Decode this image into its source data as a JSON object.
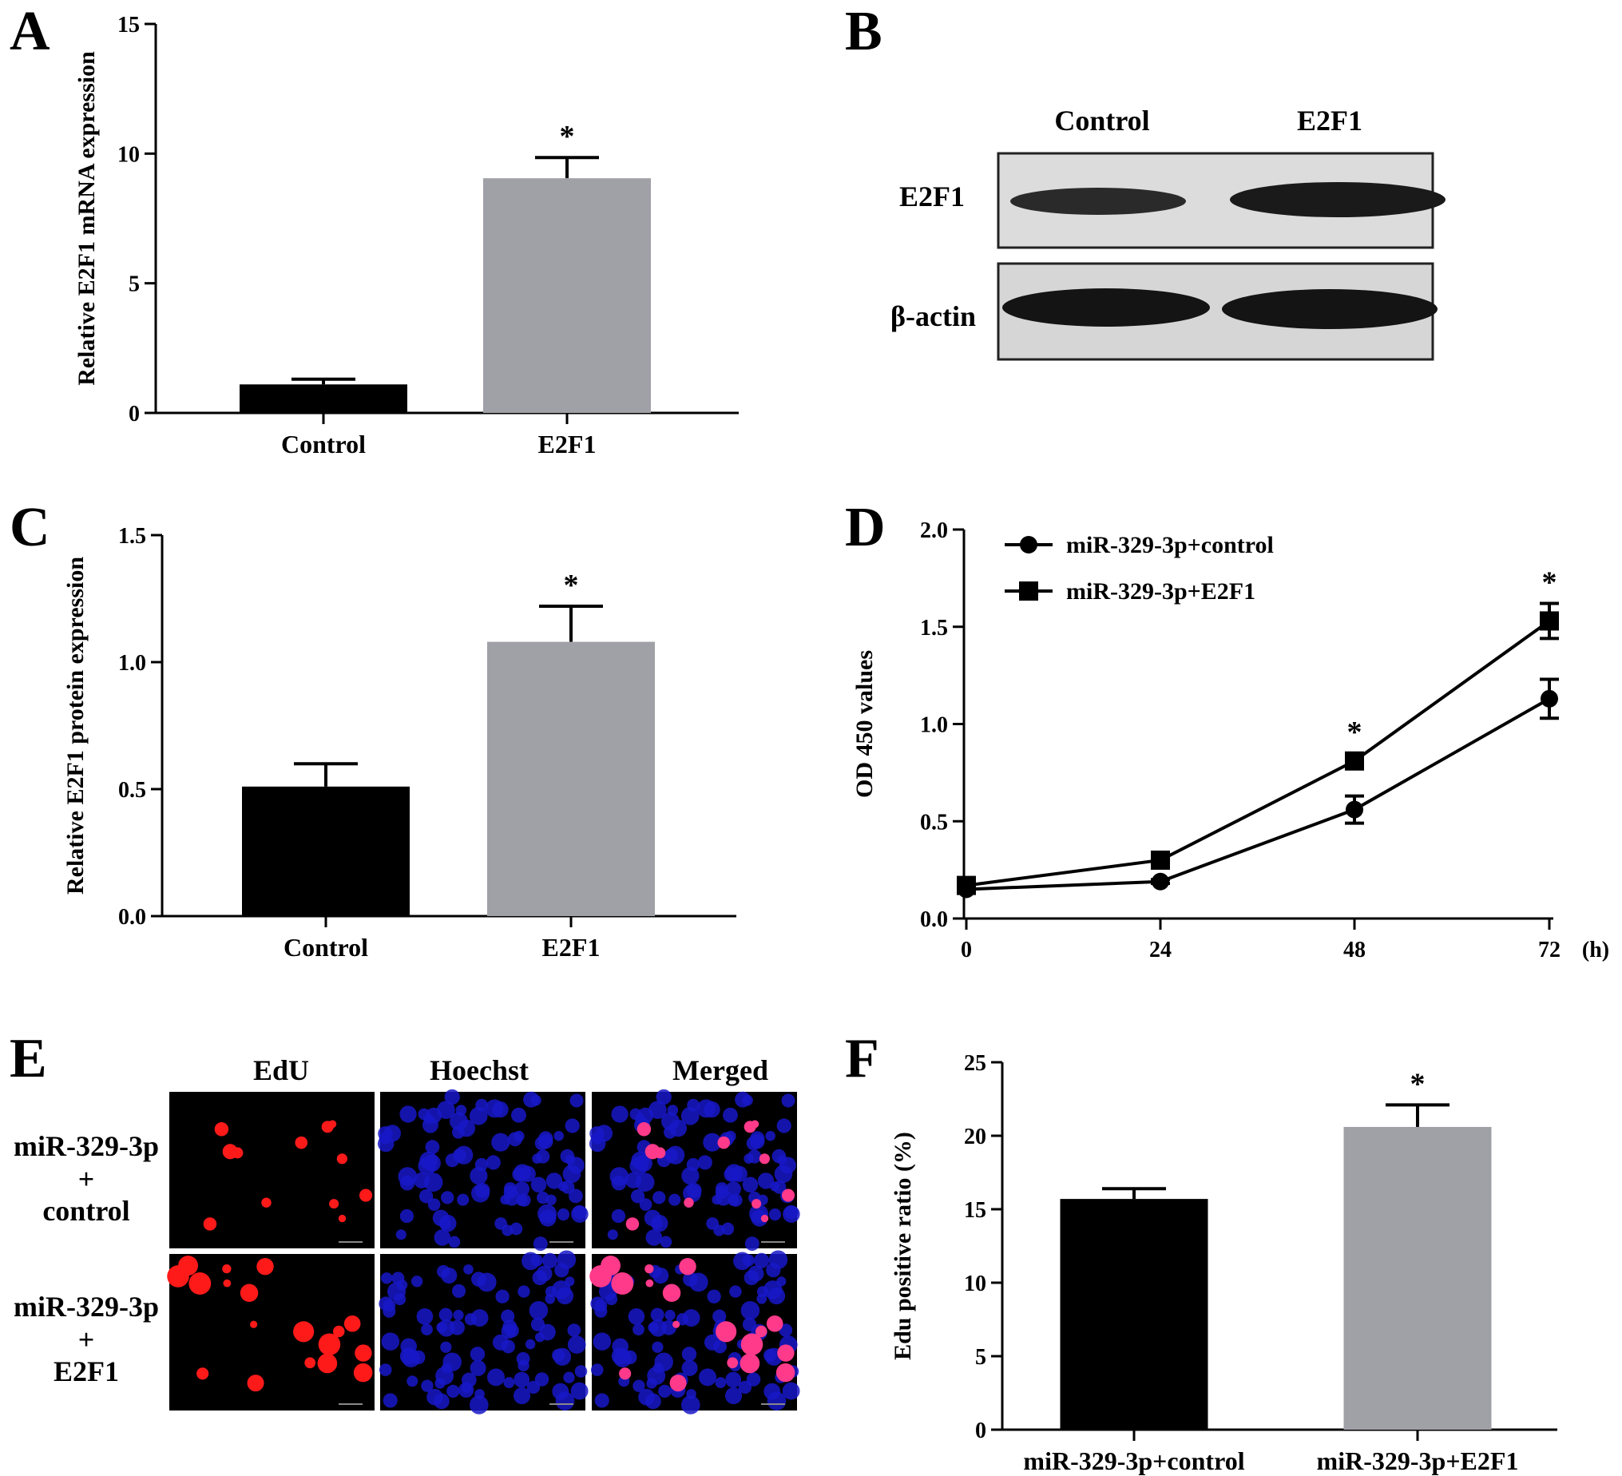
{
  "panels": {
    "A": {
      "letter": "A"
    },
    "B": {
      "letter": "B",
      "lanes": [
        "Control",
        "E2F1"
      ],
      "rows": [
        "E2F1",
        "β-actin"
      ]
    },
    "C": {
      "letter": "C"
    },
    "D": {
      "letter": "D",
      "x_unit": "(h)"
    },
    "E": {
      "letter": "E",
      "columns": [
        "EdU",
        "Hoechst",
        "Merged"
      ],
      "row1": [
        "miR-329-3p",
        "+",
        "control"
      ],
      "row2": [
        "miR-329-3p",
        "+",
        "E2F1"
      ]
    },
    "F": {
      "letter": "F"
    }
  },
  "colors": {
    "control": "#000000",
    "treated": "#a0a0a7",
    "edu": "#ff1a1a",
    "hoechst": "#1818c8"
  },
  "chart_data": [
    {
      "id": "A",
      "type": "bar",
      "ylabel": "Relative E2F1 mRNA expression",
      "ylim": [
        0,
        15
      ],
      "yticks": [
        "0",
        "5",
        "10",
        "15"
      ],
      "categories": [
        "Control",
        "E2F1"
      ],
      "values": [
        1.1,
        9.05
      ],
      "errors": [
        0.2,
        0.8
      ],
      "significance": [
        "",
        "*"
      ]
    },
    {
      "id": "C",
      "type": "bar",
      "ylabel": "Relative E2F1 protein expression",
      "ylim": [
        0,
        1.5
      ],
      "yticks": [
        "0.0",
        "0.5",
        "1.0",
        "1.5"
      ],
      "categories": [
        "Control",
        "E2F1"
      ],
      "values": [
        0.51,
        1.08
      ],
      "errors": [
        0.09,
        0.14
      ],
      "significance": [
        "",
        "*"
      ]
    },
    {
      "id": "D",
      "type": "line",
      "ylabel": "OD 450 values",
      "ylim": [
        0,
        2.0
      ],
      "yticks": [
        "0.0",
        "0.5",
        "1.0",
        "1.5",
        "2.0"
      ],
      "x": [
        0,
        24,
        48,
        72
      ],
      "xticks": [
        "0",
        "24",
        "48",
        "72"
      ],
      "series": [
        {
          "name": "miR-329-3p+control",
          "marker": "circle",
          "values": [
            0.15,
            0.19,
            0.56,
            1.13
          ],
          "errors": [
            0.01,
            0.01,
            0.07,
            0.1
          ]
        },
        {
          "name": "miR-329-3p+E2F1",
          "marker": "square",
          "values": [
            0.17,
            0.3,
            0.81,
            1.53
          ],
          "errors": [
            0.01,
            0.01,
            0.04,
            0.09
          ]
        }
      ],
      "significance": [
        "",
        "",
        "*",
        "*"
      ],
      "legend": "top-left"
    },
    {
      "id": "F",
      "type": "bar",
      "ylabel": "Edu positive ratio (%)",
      "ylim": [
        0,
        25
      ],
      "yticks": [
        "0",
        "5",
        "10",
        "15",
        "20",
        "25"
      ],
      "categories": [
        "miR-329-3p+control",
        "miR-329-3p+E2F1"
      ],
      "values": [
        15.7,
        20.6
      ],
      "errors": [
        0.7,
        1.5
      ],
      "significance": [
        "",
        "*"
      ]
    }
  ]
}
